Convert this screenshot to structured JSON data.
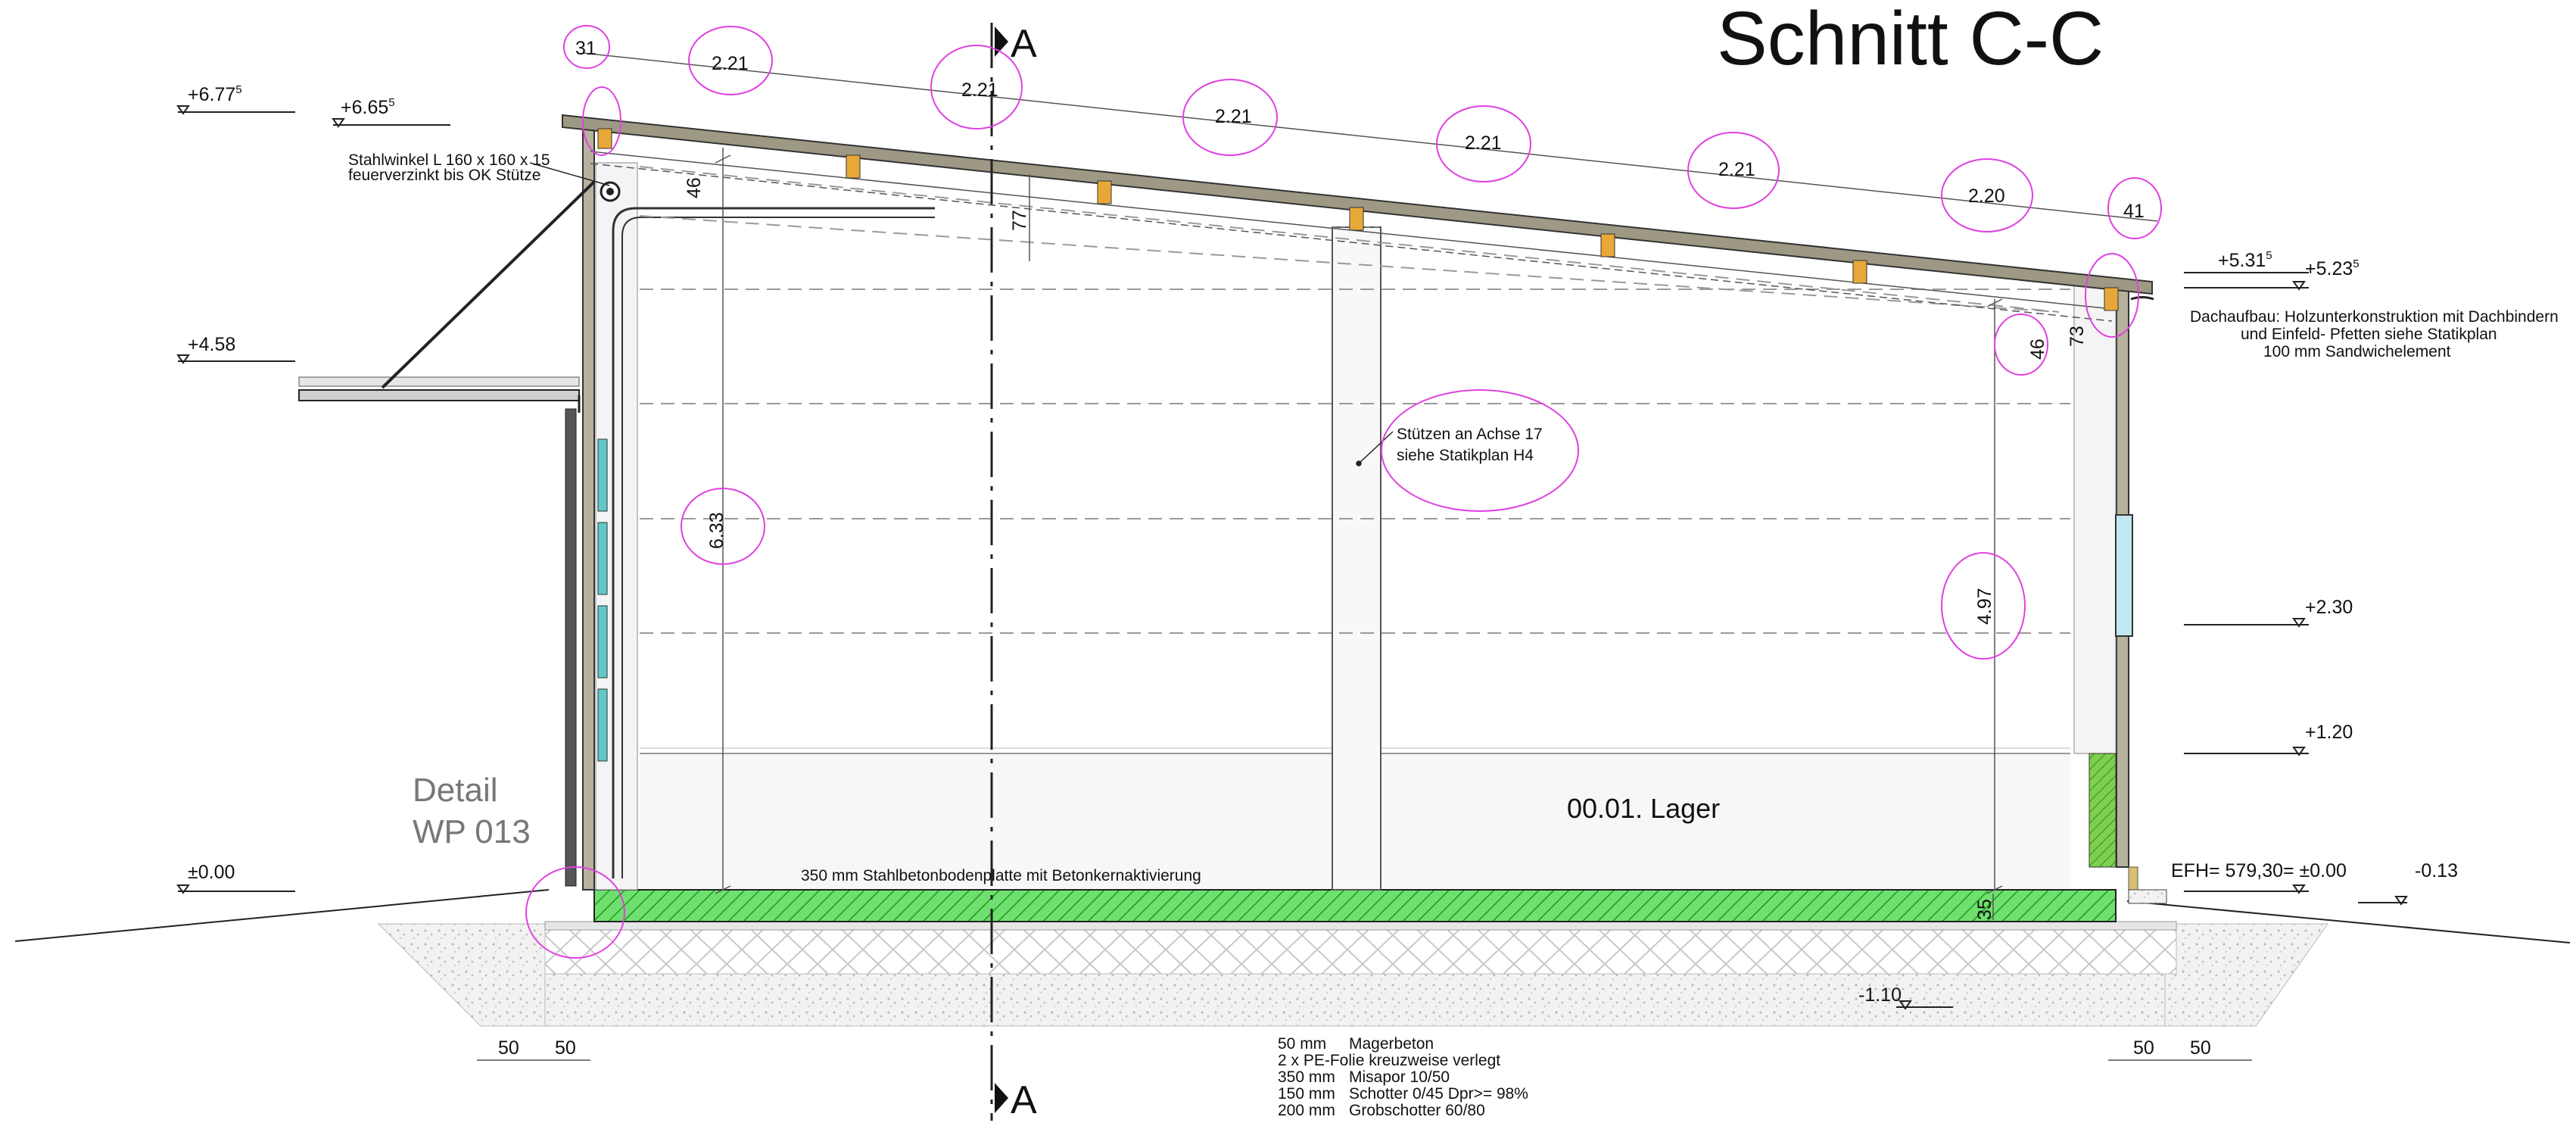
{
  "title": "Schnitt C-C",
  "section_markers": {
    "top": "A",
    "bottom": "A"
  },
  "levels": {
    "top_left_1": "+6.77",
    "top_left_1_sup": "5",
    "top_left_2": "+6.65",
    "top_left_2_sup": "5",
    "canopy": "+4.58",
    "zero_left": "±0.00",
    "right_1": "+5.31",
    "right_1_sup": "5",
    "right_2": "+5.23",
    "right_2_sup": "5",
    "right_230": "+2.30",
    "right_120": "+1.20",
    "efh": "EFH= 579,30= ±0.00",
    "minus_013": "-0.13",
    "minus_110": "-1.10"
  },
  "roof_dimensions": [
    "31",
    "2.21",
    "2.21",
    "2.21",
    "2.21",
    "2.21",
    "2.20",
    "41"
  ],
  "vertical_dimensions": {
    "left_46": "46",
    "roof_77": "77",
    "height_633": "6.33",
    "right_46": "46",
    "right_73": "73",
    "height_497": "4.97",
    "slab_35": "35"
  },
  "bottom_dimensions": {
    "left_a": "50",
    "left_b": "50",
    "right_a": "50",
    "right_b": "50"
  },
  "annotations": {
    "steel_angle_1": "Stahlwinkel L 160 x 160 x 15",
    "steel_angle_2": "feuerverzinkt bis OK Stütze",
    "columns_1": "Stützen an Achse 17",
    "columns_2": "siehe Statikplan H4",
    "roof_build_1": "Dachaufbau: Holzunterkonstruktion mit Dachbindern",
    "roof_build_2": "und Einfeld- Pfetten siehe Statikplan",
    "roof_build_3": "100 mm Sandwichelement",
    "slab": "350 mm Stahlbetonbodenplatte mit Betonkernaktivierung",
    "detail_1": "Detail",
    "detail_2": "WP 013",
    "room": "00.01. Lager"
  },
  "layers": [
    {
      "thickness": "50 mm",
      "material": "Magerbeton"
    },
    {
      "thickness": "",
      "material": "2 x PE-Folie kreuzweise verlegt"
    },
    {
      "thickness": "350 mm",
      "material": "Misapor 10/50"
    },
    {
      "thickness": "150 mm",
      "material": "Schotter 0/45 Dpr>= 98%"
    },
    {
      "thickness": "200 mm",
      "material": "Grobschotter 60/80"
    }
  ],
  "colors": {
    "revision_cloud": "#e040e0",
    "slab_hatch": "#39d439",
    "roof": "#9e9985",
    "wall": "#b7b29e",
    "purlin": "#e8a838",
    "glazing": "#5fc8c8"
  }
}
